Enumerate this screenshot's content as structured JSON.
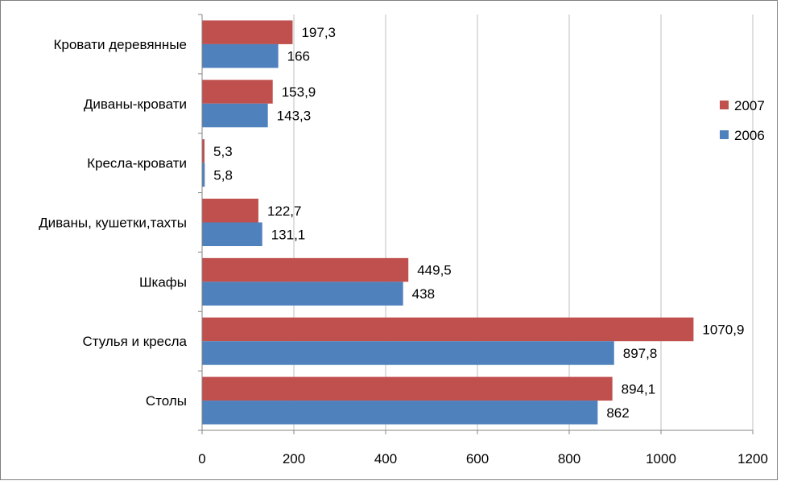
{
  "chart_data": {
    "type": "bar",
    "orientation": "horizontal",
    "categories": [
      "Кровати деревянные",
      "Диваны-кровати",
      "Кресла-кровати",
      "Диваны, кушетки,тахты",
      "Шкафы",
      "Стулья и кресла",
      "Столы"
    ],
    "series": [
      {
        "name": "2007",
        "color": "#C0504D",
        "values": [
          197.3,
          153.9,
          5.3,
          122.7,
          449.5,
          1070.9,
          894.1
        ],
        "labels": [
          "197,3",
          "153,9",
          "5,3",
          "122,7",
          "449,5",
          "1070,9",
          "894,1"
        ]
      },
      {
        "name": "2006",
        "color": "#4F81BD",
        "values": [
          166,
          143.3,
          5.8,
          131.1,
          438,
          897.8,
          862
        ],
        "labels": [
          "166",
          "143,3",
          "5,8",
          "131,1",
          "438",
          "897,8",
          "862"
        ]
      }
    ],
    "xlim": [
      0,
      1200
    ],
    "xticks": [
      0,
      200,
      400,
      600,
      800,
      1000,
      1200
    ],
    "xtick_labels": [
      "0",
      "200",
      "400",
      "600",
      "800",
      "1000",
      "1200"
    ],
    "grid": true,
    "legend_position": "right",
    "legend_order": [
      "2007",
      "2006"
    ],
    "title": "",
    "xlabel": "",
    "ylabel": ""
  }
}
